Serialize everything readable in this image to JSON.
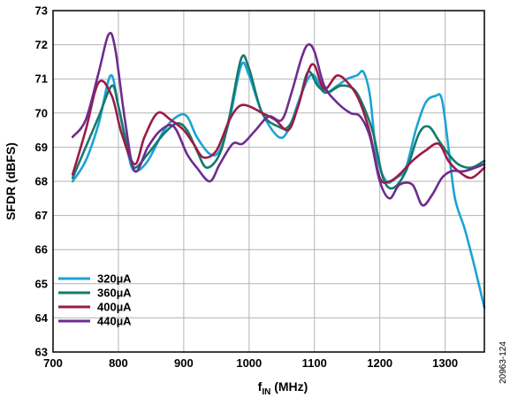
{
  "chart_data": {
    "type": "line",
    "title": "",
    "xlabel": {
      "main": "f",
      "sub": "IN",
      "unit": " (MHz)"
    },
    "ylabel": "SFDR (dBFS)",
    "xlim": [
      700,
      1360
    ],
    "ylim": [
      63,
      73
    ],
    "x_ticks": [
      700,
      800,
      900,
      1000,
      1100,
      1200,
      1300
    ],
    "y_ticks": [
      63,
      64,
      65,
      66,
      67,
      68,
      69,
      70,
      71,
      72,
      73
    ],
    "grid": true,
    "legend_position": "bottom-left",
    "figure_id": "20963-124",
    "series": [
      {
        "name": "320µA",
        "color": "#1ba3d3",
        "x": [
          730,
          750,
          770,
          788,
          800,
          815,
          825,
          845,
          870,
          890,
          905,
          920,
          940,
          955,
          970,
          988,
          1000,
          1020,
          1045,
          1060,
          1075,
          1090,
          1100,
          1115,
          1135,
          1150,
          1165,
          1175,
          1185,
          1195,
          1210,
          1225,
          1240,
          1255,
          1270,
          1285,
          1295,
          1305,
          1315,
          1330,
          1345,
          1360
        ],
        "y": [
          68.0,
          68.6,
          69.7,
          71.1,
          70.2,
          68.8,
          68.3,
          68.6,
          69.5,
          69.9,
          69.9,
          69.3,
          68.8,
          68.9,
          69.8,
          71.4,
          71.1,
          70.0,
          69.3,
          69.5,
          70.3,
          71.0,
          71.1,
          70.6,
          70.8,
          71.0,
          71.1,
          71.2,
          70.5,
          68.8,
          68.0,
          68.1,
          68.4,
          69.5,
          70.3,
          70.5,
          70.4,
          69.0,
          67.5,
          66.6,
          65.5,
          64.3
        ]
      },
      {
        "name": "360µA",
        "color": "#147a6e",
        "x": [
          730,
          750,
          770,
          790,
          800,
          815,
          825,
          845,
          870,
          890,
          905,
          920,
          935,
          955,
          970,
          988,
          1000,
          1020,
          1045,
          1060,
          1075,
          1090,
          1105,
          1120,
          1140,
          1160,
          1175,
          1190,
          1205,
          1220,
          1240,
          1260,
          1275,
          1290,
          1305,
          1320,
          1340,
          1360
        ],
        "y": [
          68.1,
          69.0,
          69.9,
          70.8,
          70.2,
          68.9,
          68.4,
          68.8,
          69.4,
          69.7,
          69.5,
          68.9,
          68.4,
          68.8,
          69.9,
          71.6,
          71.3,
          70.0,
          69.6,
          69.6,
          70.2,
          71.2,
          70.8,
          70.6,
          70.8,
          70.7,
          70.2,
          69.4,
          68.1,
          67.8,
          68.3,
          69.4,
          69.6,
          69.2,
          68.8,
          68.5,
          68.4,
          68.6
        ]
      },
      {
        "name": "400µA",
        "color": "#9b1b47",
        "x": [
          730,
          750,
          770,
          790,
          805,
          825,
          840,
          860,
          880,
          900,
          915,
          930,
          950,
          970,
          985,
          1000,
          1020,
          1040,
          1060,
          1075,
          1090,
          1100,
          1115,
          1135,
          1155,
          1170,
          1185,
          1200,
          1215,
          1230,
          1250,
          1270,
          1290,
          1305,
          1320,
          1340,
          1360
        ],
        "y": [
          68.2,
          69.5,
          70.9,
          70.5,
          69.4,
          68.5,
          69.3,
          70.0,
          69.8,
          69.5,
          69.1,
          68.7,
          68.9,
          69.8,
          70.2,
          70.2,
          70.0,
          69.8,
          69.5,
          70.2,
          71.2,
          71.4,
          70.7,
          71.1,
          70.8,
          70.3,
          69.4,
          68.1,
          68.0,
          68.2,
          68.6,
          68.9,
          69.1,
          68.6,
          68.3,
          68.1,
          68.4
        ]
      },
      {
        "name": "440µA",
        "color": "#6e2c8e",
        "x": [
          730,
          750,
          770,
          785,
          795,
          810,
          825,
          845,
          865,
          885,
          905,
          920,
          940,
          955,
          975,
          990,
          1010,
          1030,
          1050,
          1065,
          1080,
          1090,
          1100,
          1115,
          1135,
          1155,
          1170,
          1185,
          1200,
          1215,
          1230,
          1250,
          1265,
          1280,
          1295,
          1310,
          1330,
          1360
        ],
        "y": [
          69.3,
          69.8,
          71.2,
          72.3,
          71.9,
          69.8,
          68.3,
          69.0,
          69.5,
          69.6,
          68.8,
          68.4,
          68.0,
          68.5,
          69.1,
          69.1,
          69.5,
          69.9,
          69.8,
          70.6,
          71.6,
          72.0,
          71.8,
          70.8,
          70.3,
          70.0,
          69.9,
          69.3,
          68.0,
          67.5,
          67.9,
          67.9,
          67.3,
          67.6,
          68.1,
          68.3,
          68.3,
          68.5
        ]
      }
    ]
  }
}
